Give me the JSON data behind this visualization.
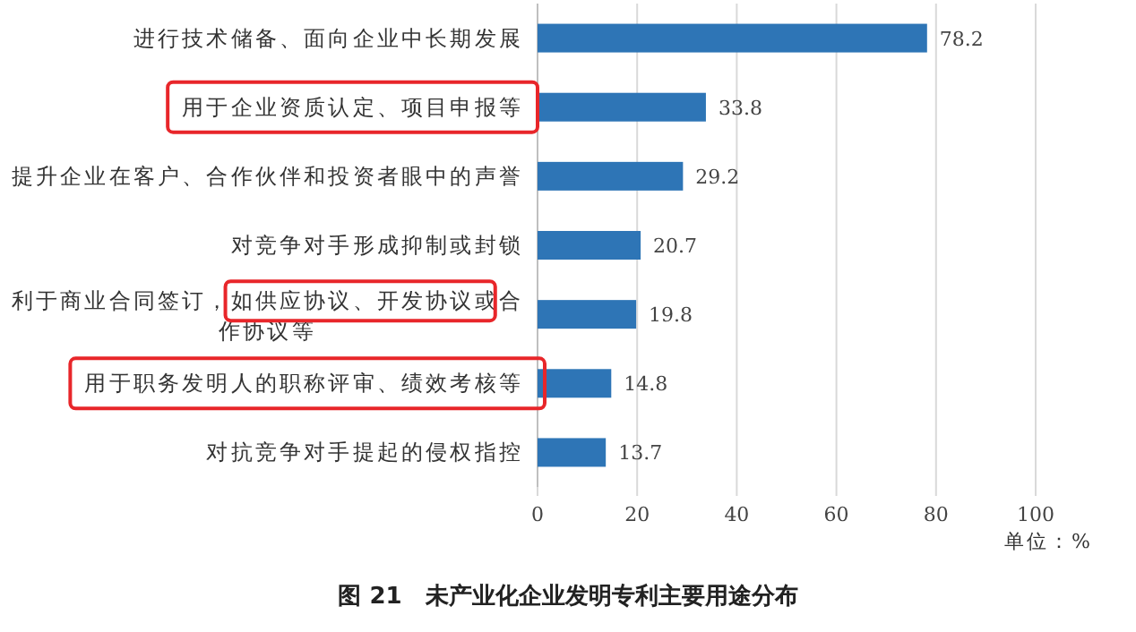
{
  "chart_data": {
    "type": "bar",
    "orientation": "horizontal",
    "title": "图 21　未产业化企业发明专利主要用途分布",
    "categories": [
      "进行技术储备、面向企业中长期发展",
      "用于企业资质认定、项目申报等",
      "提升企业在客户、合作伙伴和投资者眼中的声誉",
      "对竞争对手形成抑制或封锁",
      "利于商业合同签订，如供应协议、开发协议或合作协议等",
      "用于职务发明人的职称评审、绩效考核等",
      "对抗竞争对手提起的侵权指控"
    ],
    "values": [
      78.2,
      33.8,
      29.2,
      20.7,
      19.8,
      14.8,
      13.7
    ],
    "color": "#2e75b6",
    "data_labels": true,
    "xlim": [
      0,
      100
    ],
    "xticks": [
      0,
      20,
      40,
      60,
      80,
      100
    ],
    "grid": "x",
    "annotations": [
      "单位：%"
    ]
  }
}
